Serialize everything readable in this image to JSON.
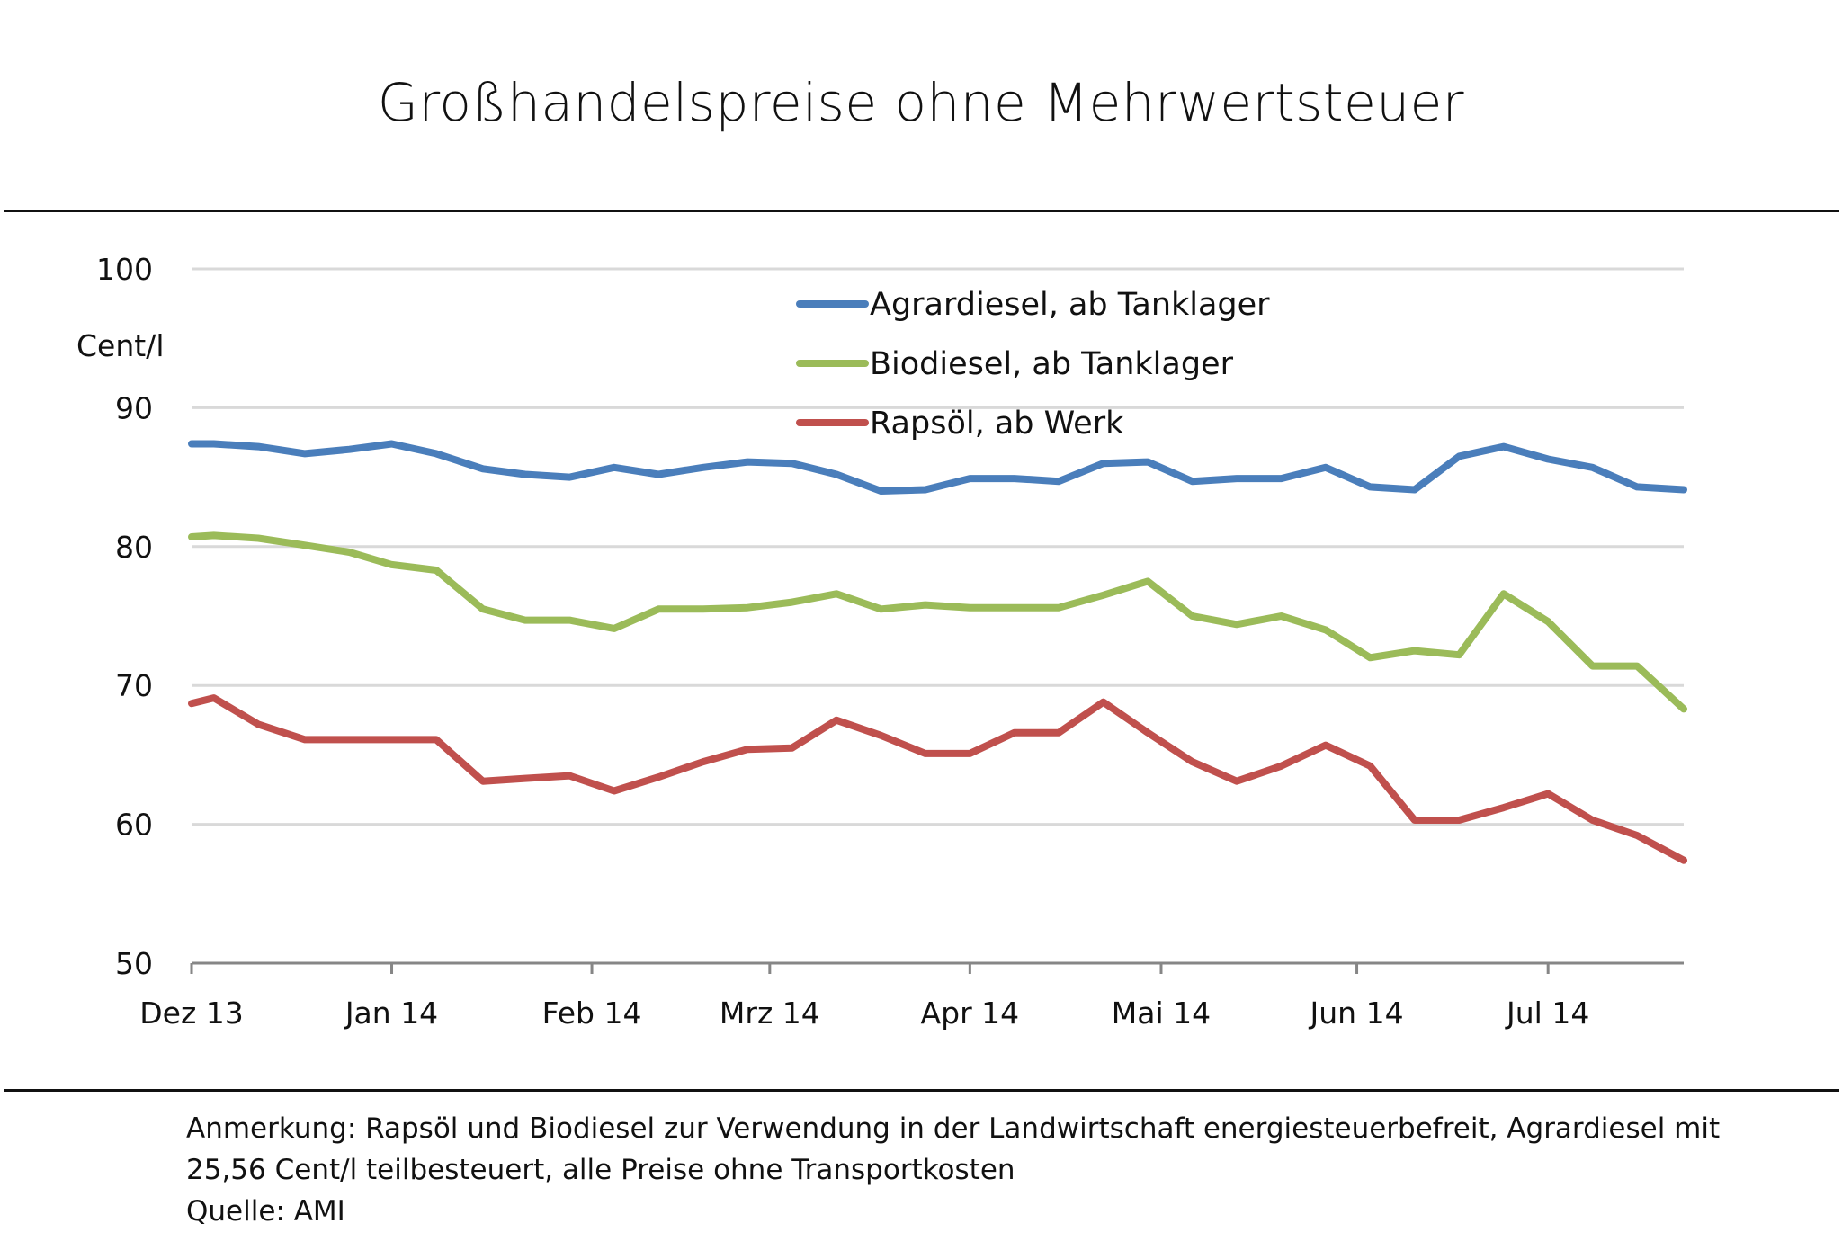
{
  "chart_data": {
    "type": "line",
    "title": "Großhandelspreise ohne Mehrwertsteuer",
    "ylabel": "Cent/l",
    "xlabel": "",
    "ylim": [
      50,
      100
    ],
    "yticks": [
      50,
      60,
      70,
      80,
      90,
      100
    ],
    "grid": true,
    "legend_position": "top-center",
    "x_tick_labels": [
      "Dez 13",
      "Jan 14",
      "Feb 14",
      "Mrz 14",
      "Apr 14",
      "Mai 14",
      "Jun 14",
      "Jul 14"
    ],
    "x_tick_positions": [
      0,
      4.5,
      9,
      13,
      17.5,
      21.8,
      26.2,
      30.5
    ],
    "x_count": 35,
    "x": [
      0,
      0.5,
      1.5,
      2.55,
      3.55,
      4.5,
      5.5,
      6.55,
      7.5,
      8.5,
      9.5,
      10.5,
      11.5,
      12.5,
      13.5,
      14.5,
      15.5,
      16.5,
      17.5,
      18.5,
      19.5,
      20.5,
      21.5,
      22.5,
      23.5,
      24.5,
      25.5,
      26.5,
      27.5,
      28.5,
      29.5,
      30.5,
      31.5,
      32.5,
      33.55
    ],
    "series": [
      {
        "name": "Agrardiesel, ab Tanklager",
        "color": "#4a7ebb",
        "values": [
          87.4,
          87.4,
          87.2,
          86.7,
          87.0,
          87.4,
          86.7,
          85.6,
          85.2,
          85.0,
          85.7,
          85.2,
          85.7,
          86.1,
          86.0,
          85.2,
          84.0,
          84.1,
          84.9,
          84.9,
          84.7,
          86.0,
          86.1,
          84.7,
          84.9,
          84.9,
          85.7,
          84.3,
          84.1,
          86.5,
          87.2,
          86.3,
          85.7,
          84.3,
          84.1
        ]
      },
      {
        "name": "Biodiesel, ab Tanklager",
        "color": "#9bbb59",
        "values": [
          80.7,
          80.8,
          80.6,
          80.1,
          79.6,
          78.7,
          78.3,
          75.5,
          74.7,
          74.7,
          74.1,
          75.5,
          75.5,
          75.6,
          76.0,
          76.6,
          75.5,
          75.8,
          75.6,
          75.6,
          75.6,
          76.5,
          77.5,
          75.0,
          74.4,
          75.0,
          74.0,
          72.0,
          72.5,
          72.2,
          76.6,
          74.6,
          71.4,
          71.4,
          68.3
        ]
      },
      {
        "name": "Rapsöl, ab Werk",
        "color": "#c0504d",
        "values": [
          68.7,
          69.1,
          67.2,
          66.1,
          66.1,
          66.1,
          66.1,
          63.1,
          63.3,
          63.5,
          62.4,
          63.4,
          64.5,
          65.4,
          65.5,
          67.5,
          66.4,
          65.1,
          65.1,
          66.6,
          66.6,
          68.8,
          66.6,
          64.5,
          63.1,
          64.2,
          65.7,
          64.2,
          60.3,
          60.3,
          61.2,
          62.2,
          60.3,
          59.2,
          57.4
        ]
      }
    ],
    "note_lines": [
      "Anmerkung: Rapsöl und Biodiesel zur Verwendung in der Landwirtschaft energiesteuerbefreit, Agrardiesel mit",
      "25,56 Cent/l teilbesteuert, alle Preise ohne Transportkosten"
    ],
    "source": "Quelle: AMI"
  }
}
